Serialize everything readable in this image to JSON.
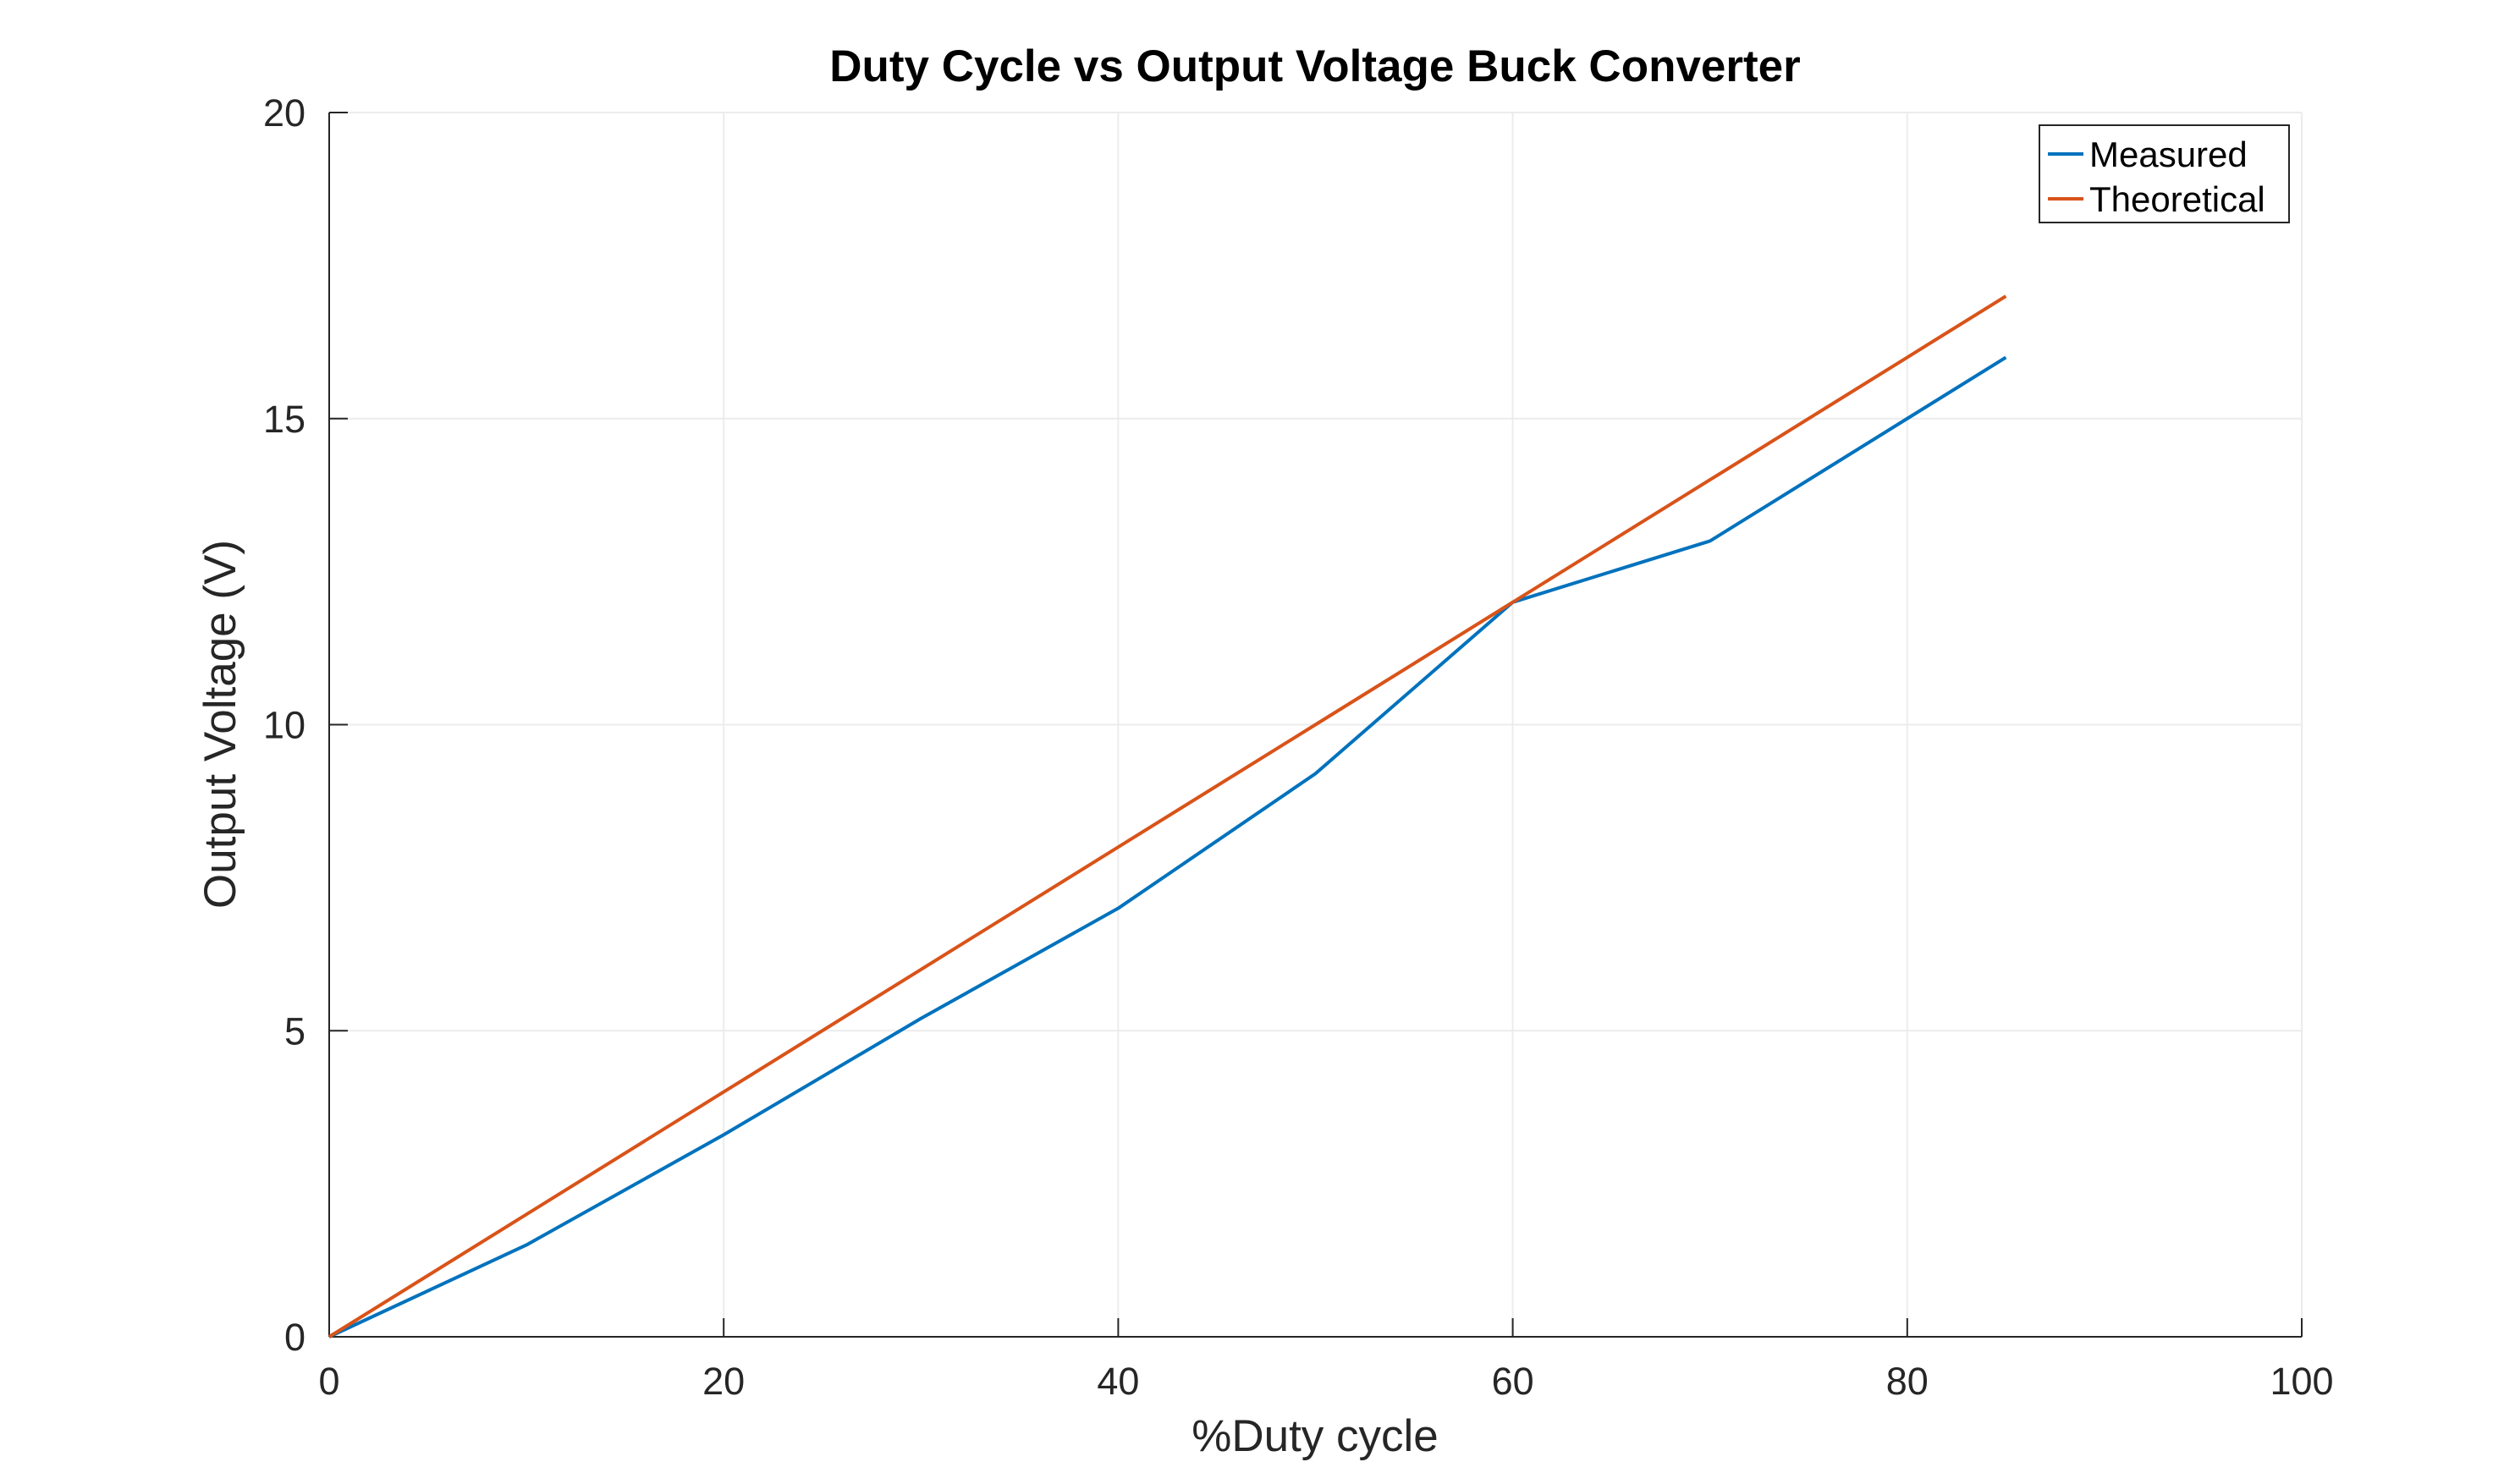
{
  "chart_data": {
    "type": "line",
    "title": "Duty Cycle vs Output Voltage Buck Converter",
    "xlabel": "%Duty cycle",
    "ylabel": "Output Voltage (V)",
    "xlim": [
      0,
      100
    ],
    "ylim": [
      0,
      20
    ],
    "xticks": [
      0,
      20,
      40,
      60,
      80,
      100
    ],
    "yticks": [
      0,
      5,
      10,
      15,
      20
    ],
    "xtick_labels": [
      "0",
      "20",
      "40",
      "60",
      "80",
      "100"
    ],
    "ytick_labels": [
      "0",
      "5",
      "10",
      "15",
      "20"
    ],
    "grid": true,
    "legend_position": "top-right",
    "series": [
      {
        "name": "Measured",
        "color": "#0072BD",
        "x": [
          0,
          10,
          20,
          30,
          40,
          50,
          60,
          70,
          80,
          85
        ],
        "y": [
          0,
          1.5,
          3.3,
          5.2,
          7.0,
          9.2,
          12.0,
          13.0,
          15.0,
          16.0
        ]
      },
      {
        "name": "Theoretical",
        "color": "#D95319",
        "x": [
          0,
          10,
          20,
          30,
          40,
          50,
          60,
          70,
          80,
          85
        ],
        "y": [
          0,
          2,
          4,
          6,
          8,
          10,
          12,
          14,
          16,
          17
        ]
      }
    ]
  }
}
